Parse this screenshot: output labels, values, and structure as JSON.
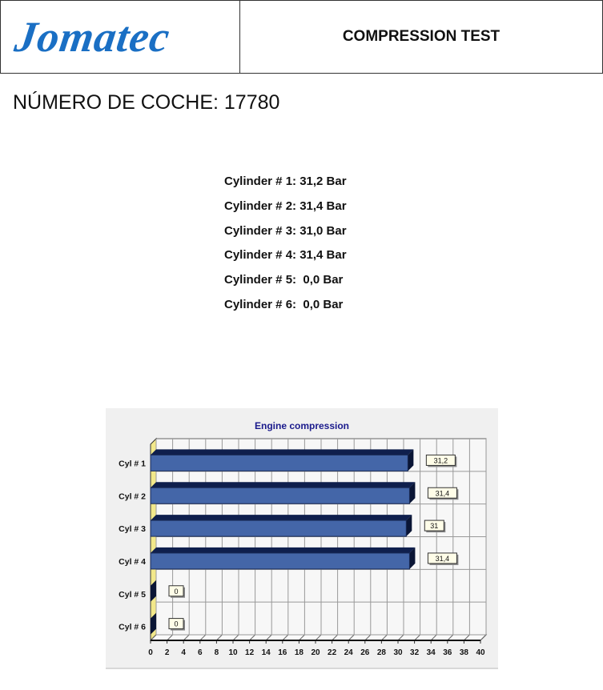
{
  "header": {
    "logo": "Jomatec",
    "title": "COMPRESSION TEST"
  },
  "car_number_label": "NÚMERO DE COCHE: 17780",
  "cylinder_readings": [
    "Cylinder # 1: 31,2 Bar",
    "Cylinder # 2: 31,4 Bar",
    "Cylinder # 3: 31,0 Bar",
    "Cylinder # 4: 31,4 Bar",
    "Cylinder # 5:  0,0 Bar",
    "Cylinder # 6:  0,0 Bar"
  ],
  "chart_data": {
    "type": "bar",
    "orientation": "horizontal",
    "title": "Engine compression",
    "categories": [
      "Cyl # 1",
      "Cyl # 2",
      "Cyl # 3",
      "Cyl # 4",
      "Cyl # 5",
      "Cyl # 6"
    ],
    "values": [
      31.2,
      31.4,
      31,
      31.4,
      0,
      0
    ],
    "data_labels": [
      "31,2",
      "31,4",
      "31",
      "31,4",
      "0",
      "0"
    ],
    "xlim": [
      0,
      40
    ],
    "xticks": [
      0,
      2,
      4,
      6,
      8,
      10,
      12,
      14,
      16,
      18,
      20,
      22,
      24,
      26,
      28,
      30,
      32,
      34,
      36,
      38,
      40
    ],
    "grid": true,
    "style": "3d",
    "colors": {
      "bar": "#4466a8",
      "bar_dark": "#0f1f4d",
      "title": "#1a1a8c",
      "floor": "#f2e88a",
      "label_bg": "#fffde8"
    }
  }
}
